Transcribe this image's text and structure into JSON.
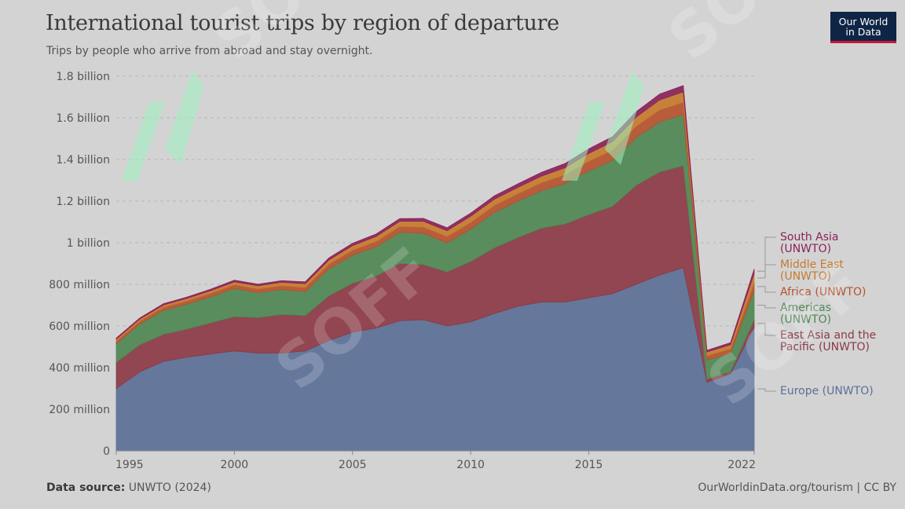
{
  "title": "International tourist trips by region of departure",
  "subtitle": "Trips by people who arrive from abroad and stay overnight.",
  "logo": {
    "line1": "Our World",
    "line2": "in Data"
  },
  "footer": {
    "source_label": "Data source:",
    "source_value": "UNWTO (2024)",
    "right_text": "OurWorldinData.org/tourism | CC BY"
  },
  "watermark_text": "SOFF",
  "chart_data": {
    "type": "area",
    "stacked": true,
    "x": [
      1995,
      1996,
      1997,
      1998,
      1999,
      2000,
      2001,
      2002,
      2003,
      2004,
      2005,
      2006,
      2007,
      2008,
      2009,
      2010,
      2011,
      2012,
      2013,
      2014,
      2015,
      2016,
      2017,
      2018,
      2019,
      2020,
      2021,
      2022
    ],
    "ylim": [
      0,
      1800000000
    ],
    "y_ticks": [
      0,
      200000000,
      400000000,
      600000000,
      800000000,
      1000000000,
      1200000000,
      1400000000,
      1600000000,
      1800000000
    ],
    "y_tick_labels": [
      "0",
      "200 million",
      "400 million",
      "600 million",
      "800 million",
      "1 billion",
      "1.2 billion",
      "1.4 billion",
      "1.6 billion",
      "1.8 billion"
    ],
    "x_tick_labels": [
      "1995",
      "2000",
      "2005",
      "2010",
      "2015",
      "2022"
    ],
    "x_tick_values": [
      1995,
      2000,
      2005,
      2010,
      2015,
      2022
    ],
    "grid": true,
    "legend_position": "right",
    "series": [
      {
        "name": "Europe (UNWTO)",
        "color": "#5b6f96",
        "values": [
          300,
          380,
          430,
          450,
          465,
          480,
          470,
          470,
          480,
          530,
          570,
          590,
          625,
          630,
          600,
          620,
          660,
          695,
          715,
          715,
          735,
          755,
          800,
          845,
          880,
          330,
          370,
          595
        ]
      },
      {
        "name": "East Asia and the Pacific (UNWTO)",
        "color": "#8b3a45",
        "values": [
          125,
          130,
          130,
          135,
          150,
          165,
          170,
          185,
          170,
          215,
          235,
          250,
          275,
          265,
          260,
          290,
          315,
          330,
          355,
          375,
          400,
          420,
          475,
          495,
          490,
          15,
          10,
          35
        ]
      },
      {
        "name": "Americas (UNWTO)",
        "color": "#4f8752",
        "values": [
          90,
          100,
          115,
          120,
          125,
          135,
          120,
          120,
          115,
          130,
          135,
          140,
          150,
          150,
          140,
          155,
          170,
          175,
          180,
          195,
          210,
          220,
          230,
          240,
          245,
          90,
          90,
          140
        ]
      },
      {
        "name": "Africa (UNWTO)",
        "color": "#b4532e",
        "values": [
          12,
          14,
          15,
          16,
          17,
          18,
          18,
          19,
          20,
          22,
          24,
          26,
          28,
          30,
          30,
          32,
          34,
          36,
          38,
          42,
          46,
          50,
          54,
          58,
          60,
          22,
          20,
          38
        ]
      },
      {
        "name": "Middle East (UNWTO)",
        "color": "#c77a2c",
        "values": [
          10,
          10,
          11,
          12,
          13,
          14,
          15,
          16,
          18,
          20,
          22,
          24,
          25,
          28,
          28,
          30,
          30,
          30,
          32,
          34,
          38,
          40,
          44,
          48,
          50,
          18,
          20,
          45
        ]
      },
      {
        "name": "South Asia (UNWTO)",
        "color": "#8a2359",
        "values": [
          5,
          5,
          6,
          6,
          7,
          8,
          8,
          8,
          9,
          10,
          11,
          12,
          13,
          14,
          14,
          15,
          16,
          17,
          18,
          20,
          22,
          24,
          26,
          28,
          30,
          8,
          10,
          20
        ]
      }
    ]
  }
}
